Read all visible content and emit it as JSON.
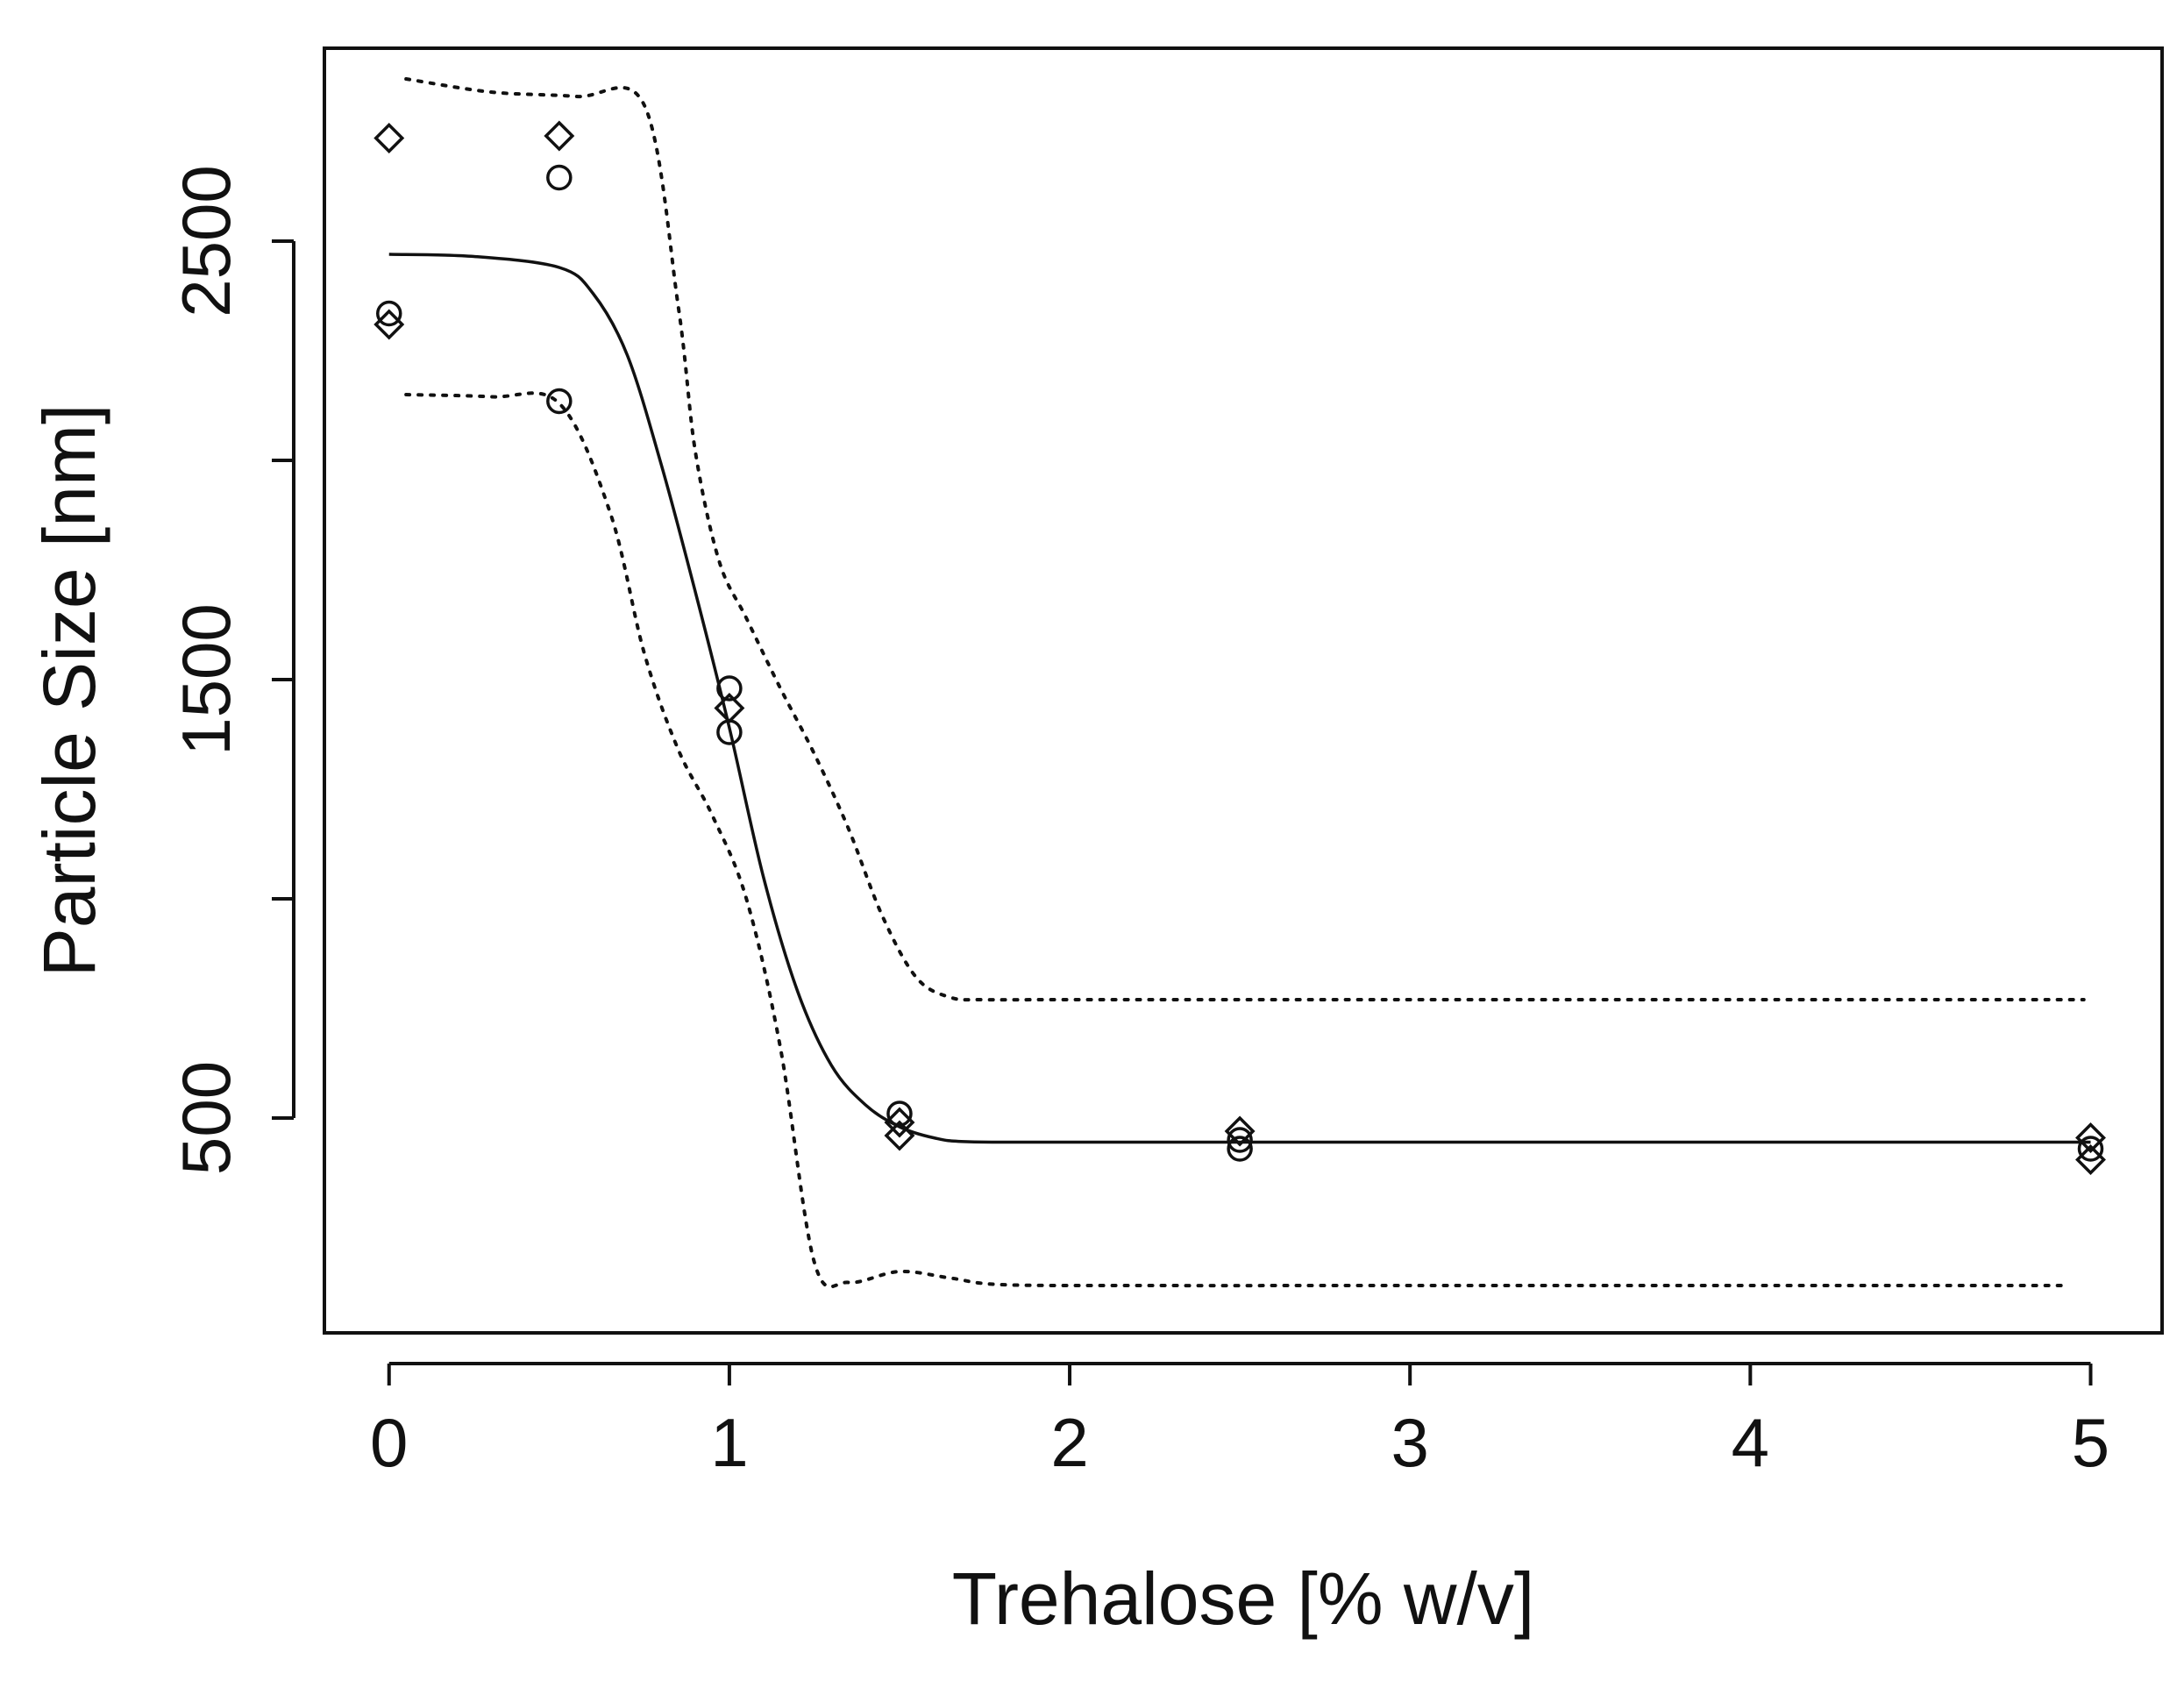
{
  "chart_data": {
    "type": "scatter",
    "title": "",
    "xlabel": "Trehalose [% w/v]",
    "ylabel": "Particle Size [nm]",
    "xlim": [
      -0.19,
      5.21
    ],
    "ylim": [
      10,
      2940
    ],
    "x_ticks": [
      0,
      1,
      2,
      3,
      4,
      5
    ],
    "y_ticks": [
      500,
      1500,
      2500
    ],
    "grid": false,
    "series": [
      {
        "name": "observed",
        "style": "points",
        "markers": [
          "circle",
          "diamond"
        ],
        "points": [
          {
            "x": 0,
            "y": 2735,
            "m": "diamond"
          },
          {
            "x": 0,
            "y": 2335,
            "m": "circle"
          },
          {
            "x": 0,
            "y": 2310,
            "m": "diamond"
          },
          {
            "x": 0.5,
            "y": 2740,
            "m": "diamond"
          },
          {
            "x": 0.5,
            "y": 2645,
            "m": "circle"
          },
          {
            "x": 0.5,
            "y": 2135,
            "m": "circle"
          },
          {
            "x": 1,
            "y": 1480,
            "m": "circle"
          },
          {
            "x": 1,
            "y": 1435,
            "m": "diamond"
          },
          {
            "x": 1,
            "y": 1380,
            "m": "circle"
          },
          {
            "x": 1.5,
            "y": 510,
            "m": "circle"
          },
          {
            "x": 1.5,
            "y": 490,
            "m": "diamond"
          },
          {
            "x": 1.5,
            "y": 460,
            "m": "diamond"
          },
          {
            "x": 2.5,
            "y": 470,
            "m": "diamond"
          },
          {
            "x": 2.5,
            "y": 450,
            "m": "circle"
          },
          {
            "x": 2.5,
            "y": 430,
            "m": "circle"
          },
          {
            "x": 5,
            "y": 455,
            "m": "diamond"
          },
          {
            "x": 5,
            "y": 430,
            "m": "circle"
          },
          {
            "x": 5,
            "y": 405,
            "m": "diamond"
          }
        ]
      },
      {
        "name": "fitted",
        "style": "solid",
        "x": [
          0,
          0.25,
          0.5,
          0.6,
          0.7,
          0.8,
          0.9,
          1.0,
          1.1,
          1.2,
          1.3,
          1.4,
          1.5,
          1.6,
          1.7,
          2.0,
          3.0,
          4.0,
          5.0
        ],
        "y": [
          2470,
          2465,
          2440,
          2380,
          2240,
          1990,
          1700,
          1390,
          1050,
          790,
          620,
          530,
          480,
          455,
          446,
          445,
          445,
          445,
          445
        ]
      },
      {
        "name": "upper bound",
        "style": "dotted",
        "x": [
          0.05,
          0.3,
          0.55,
          0.75,
          0.85,
          0.9,
          0.97,
          1.05,
          1.15,
          1.25,
          1.35,
          1.45,
          1.55,
          1.65,
          1.75,
          2.0,
          3.0,
          4.0,
          4.98
        ],
        "y": [
          2870,
          2840,
          2830,
          2810,
          2350,
          2020,
          1770,
          1640,
          1480,
          1330,
          1160,
          960,
          820,
          775,
          770,
          770,
          770,
          770,
          770
        ]
      },
      {
        "name": "lower bound",
        "style": "dotted",
        "x": [
          0.05,
          0.3,
          0.5,
          0.65,
          0.75,
          0.85,
          0.95,
          1.05,
          1.15,
          1.25,
          1.35,
          1.5,
          1.65,
          1.8,
          2.2,
          3.0,
          4.0,
          4.93
        ],
        "y": [
          2150,
          2145,
          2130,
          1880,
          1560,
          1340,
          1190,
          1000,
          660,
          170,
          125,
          150,
          135,
          120,
          118,
          118,
          118,
          118
        ]
      }
    ]
  }
}
